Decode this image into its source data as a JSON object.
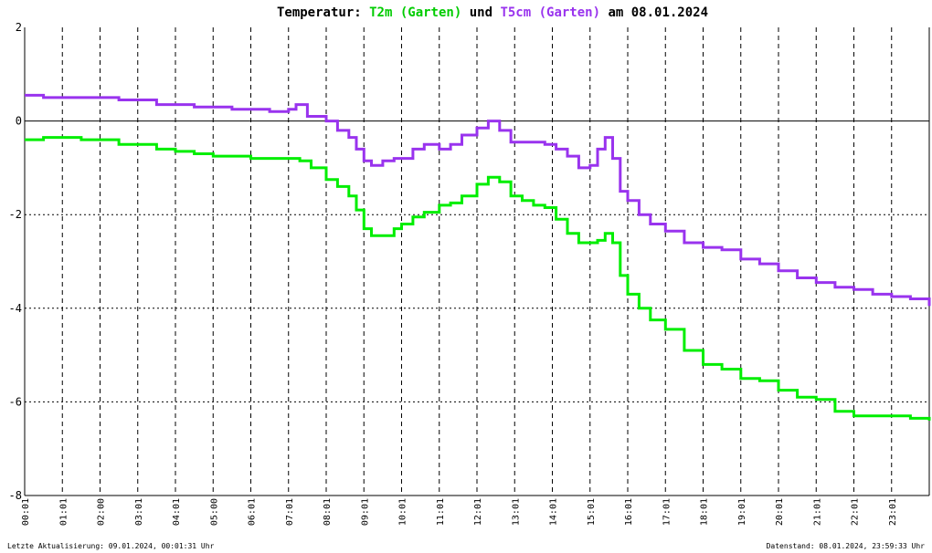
{
  "chart_data": {
    "type": "line",
    "title": {
      "prefix": "Temperatur: ",
      "series1": "T2m (Garten)",
      "middle": " und ",
      "series2": "T5cm (Garten)",
      "suffix": " am 08.01.2024"
    },
    "ylim": [
      -8,
      2
    ],
    "yticks": [
      "2",
      "0",
      "-2",
      "-4",
      "-6",
      "-8"
    ],
    "xlim": [
      0,
      24
    ],
    "xticks": [
      "00:01",
      "01:01",
      "02:00",
      "03:01",
      "04:01",
      "05:00",
      "06:01",
      "07:01",
      "08:01",
      "09:01",
      "10:01",
      "11:01",
      "12:01",
      "13:01",
      "14:01",
      "15:01",
      "16:01",
      "17:01",
      "18:01",
      "19:01",
      "20:01",
      "21:01",
      "22:01",
      "23:01"
    ],
    "grid": true,
    "series": [
      {
        "name": "T2m (Garten)",
        "color": "#00ee00",
        "x": [
          0.0,
          0.5,
          1.0,
          1.5,
          2.0,
          2.5,
          3.0,
          3.5,
          4.0,
          4.5,
          5.0,
          5.5,
          6.0,
          6.5,
          7.0,
          7.3,
          7.6,
          8.0,
          8.3,
          8.6,
          8.8,
          9.0,
          9.2,
          9.5,
          9.8,
          10.0,
          10.3,
          10.6,
          11.0,
          11.3,
          11.6,
          12.0,
          12.3,
          12.6,
          12.9,
          13.2,
          13.5,
          13.8,
          14.1,
          14.4,
          14.7,
          15.0,
          15.2,
          15.4,
          15.6,
          15.8,
          16.0,
          16.3,
          16.6,
          17.0,
          17.5,
          18.0,
          18.5,
          19.0,
          19.5,
          20.0,
          20.5,
          21.0,
          21.5,
          22.0,
          22.5,
          23.0,
          23.5,
          24.0
        ],
        "values": [
          -0.4,
          -0.35,
          -0.35,
          -0.4,
          -0.4,
          -0.5,
          -0.5,
          -0.6,
          -0.65,
          -0.7,
          -0.75,
          -0.75,
          -0.8,
          -0.8,
          -0.8,
          -0.85,
          -1.0,
          -1.25,
          -1.4,
          -1.6,
          -1.9,
          -2.3,
          -2.45,
          -2.45,
          -2.3,
          -2.2,
          -2.05,
          -1.95,
          -1.8,
          -1.75,
          -1.6,
          -1.35,
          -1.2,
          -1.3,
          -1.6,
          -1.7,
          -1.8,
          -1.85,
          -2.1,
          -2.4,
          -2.6,
          -2.6,
          -2.55,
          -2.4,
          -2.6,
          -3.3,
          -3.7,
          -4.0,
          -4.25,
          -4.45,
          -4.9,
          -5.2,
          -5.3,
          -5.5,
          -5.55,
          -5.75,
          -5.9,
          -5.95,
          -6.2,
          -6.3,
          -6.3,
          -6.3,
          -6.35,
          -6.4
        ]
      },
      {
        "name": "T5cm (Garten)",
        "color": "#9933ee",
        "x": [
          0.0,
          0.5,
          1.0,
          1.5,
          2.0,
          2.5,
          3.0,
          3.5,
          4.0,
          4.5,
          5.0,
          5.5,
          6.0,
          6.5,
          7.0,
          7.2,
          7.5,
          8.0,
          8.3,
          8.6,
          8.8,
          9.0,
          9.2,
          9.5,
          9.8,
          10.0,
          10.3,
          10.6,
          11.0,
          11.3,
          11.6,
          12.0,
          12.3,
          12.6,
          12.9,
          13.2,
          13.5,
          13.8,
          14.1,
          14.4,
          14.7,
          15.0,
          15.2,
          15.4,
          15.6,
          15.8,
          16.0,
          16.3,
          16.6,
          17.0,
          17.5,
          18.0,
          18.5,
          19.0,
          19.5,
          20.0,
          20.5,
          21.0,
          21.5,
          22.0,
          22.5,
          23.0,
          23.5,
          24.0
        ],
        "values": [
          0.55,
          0.5,
          0.5,
          0.5,
          0.5,
          0.45,
          0.45,
          0.35,
          0.35,
          0.3,
          0.3,
          0.25,
          0.25,
          0.2,
          0.25,
          0.35,
          0.1,
          0.0,
          -0.2,
          -0.35,
          -0.6,
          -0.85,
          -0.95,
          -0.85,
          -0.8,
          -0.8,
          -0.6,
          -0.5,
          -0.6,
          -0.5,
          -0.3,
          -0.15,
          0.0,
          -0.2,
          -0.45,
          -0.45,
          -0.45,
          -0.5,
          -0.6,
          -0.75,
          -1.0,
          -0.95,
          -0.6,
          -0.35,
          -0.8,
          -1.5,
          -1.7,
          -2.0,
          -2.2,
          -2.35,
          -2.6,
          -2.7,
          -2.75,
          -2.95,
          -3.05,
          -3.2,
          -3.35,
          -3.45,
          -3.55,
          -3.6,
          -3.7,
          -3.75,
          -3.8,
          -3.95
        ]
      }
    ],
    "footer": {
      "left": "Letzte Aktualisierung: 09.01.2024, 00:01:31 Uhr",
      "right": "Datenstand: 08.01.2024, 23:59:33 Uhr"
    }
  }
}
